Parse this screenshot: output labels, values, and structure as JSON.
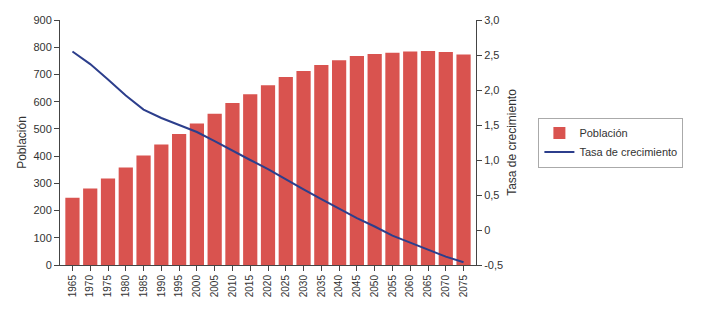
{
  "chart_data": {
    "type": "bar",
    "x": [
      1965,
      1970,
      1975,
      1980,
      1985,
      1990,
      1995,
      2000,
      2005,
      2010,
      2015,
      2020,
      2025,
      2030,
      2035,
      2040,
      2045,
      2050,
      2055,
      2060,
      2065,
      2070,
      2075
    ],
    "xlim": [
      1961.5,
      2078.5
    ],
    "xticks": [
      1965,
      1970,
      1975,
      1980,
      1985,
      1990,
      1995,
      2000,
      2005,
      2010,
      2015,
      2020,
      2025,
      2030,
      2035,
      2040,
      2045,
      2050,
      2055,
      2060,
      2065,
      2070,
      2075
    ],
    "ylabel": "Población",
    "ylim": [
      0,
      900
    ],
    "yticks": [
      0,
      100,
      200,
      300,
      400,
      500,
      600,
      700,
      800,
      900
    ],
    "y2label": "Tasa de crecimiento",
    "y2lim": [
      -0.5,
      3.0
    ],
    "y2ticks": [
      {
        "value": -0.5,
        "label": "-0,5"
      },
      0,
      {
        "value": 0.5,
        "label": "0,5"
      },
      {
        "value": 1.0,
        "label": "1,0"
      },
      {
        "value": 1.5,
        "label": "1,5"
      },
      {
        "value": 2.0,
        "label": "2,0"
      },
      {
        "value": 2.5,
        "label": "2,5"
      },
      {
        "value": 3.0,
        "label": "3,0"
      }
    ],
    "series": [
      {
        "name": "Población",
        "type": "bar",
        "color": "#d9534f",
        "values": [
          247,
          281,
          318,
          358,
          402,
          443,
          481,
          520,
          556,
          595,
          627,
          660,
          691,
          713,
          735,
          752,
          768,
          775,
          780,
          784,
          786,
          782,
          773
        ]
      },
      {
        "name": "Tasa de crecimiento",
        "type": "line",
        "color": "#2c3e8c",
        "axis": "y2",
        "values": [
          2.55,
          2.37,
          2.15,
          1.92,
          1.72,
          1.6,
          1.5,
          1.4,
          1.27,
          1.13,
          1.0,
          0.87,
          0.72,
          0.58,
          0.44,
          0.3,
          0.17,
          0.05,
          -0.08,
          -0.18,
          -0.28,
          -0.38,
          -0.46
        ]
      }
    ],
    "grid": false,
    "legend": "right"
  }
}
